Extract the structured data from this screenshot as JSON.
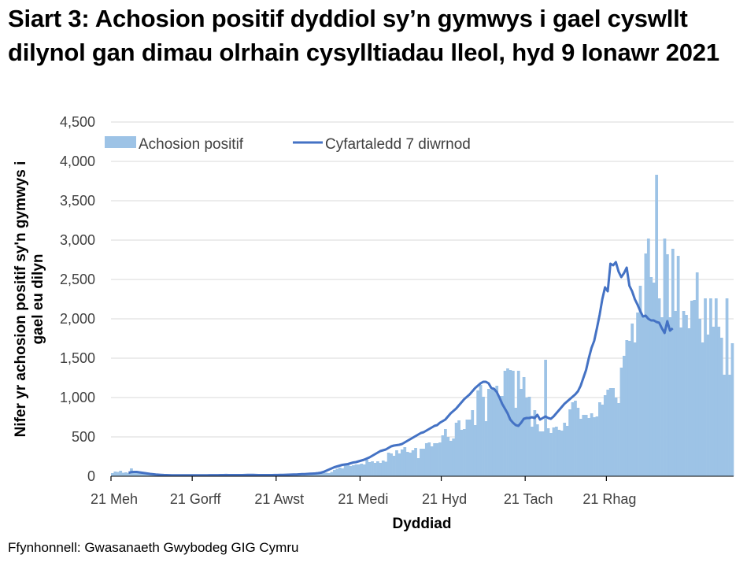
{
  "title": "Siart 3: Achosion positif dyddiol sy’n gymwys i gael cyswllt dilynol gan dimau olrhain cysylltiadau lleol, hyd 9 Ionawr 2021",
  "source": "Ffynhonnell: Gwasanaeth Gwybodeg GIG Cymru",
  "colors": {
    "bars": "#9DC3E6",
    "line": "#4472C4",
    "grid": "#D9D9D9",
    "axis": "#000000"
  },
  "chart_data": {
    "type": "bar+line",
    "title": "Siart 3: Achosion positif dyddiol sy’n gymwys i gael cyswllt dilynol gan dimau olrhain cysylltiadau lleol, hyd 9 Ionawr 2021",
    "xlabel": "Dyddiad",
    "ylabel": "Nifer yr achosion positif sy'n gymwys i gael eu dilyn",
    "ylim": [
      0,
      4500
    ],
    "yticks": [
      0,
      500,
      1000,
      1500,
      2000,
      2500,
      3000,
      3500,
      4000,
      4500
    ],
    "ytick_labels": [
      "0",
      "500",
      "1,000",
      "1,500",
      "2,000",
      "2,500",
      "3,000",
      "3,500",
      "4,000",
      "4,500"
    ],
    "xtick_labels": [
      "21 Meh",
      "21 Gorff",
      "21 Awst",
      "21 Medi",
      "21 Hyd",
      "21 Tach",
      "21 Rhag"
    ],
    "xtick_day_index": [
      0,
      30,
      61,
      92,
      122,
      153,
      183
    ],
    "start_date": "21 Meh",
    "grid": true,
    "legend_position": "top-left",
    "legend": [
      "Achosion positif",
      "Cyfartaledd 7 diwrnod"
    ],
    "series": [
      {
        "name": "Achosion positif",
        "type": "bar",
        "values": [
          40,
          60,
          55,
          70,
          45,
          50,
          40,
          100,
          55,
          45,
          40,
          35,
          30,
          30,
          25,
          20,
          20,
          15,
          20,
          15,
          12,
          10,
          15,
          12,
          10,
          12,
          10,
          10,
          15,
          10,
          10,
          12,
          10,
          15,
          10,
          12,
          25,
          10,
          12,
          10,
          15,
          10,
          12,
          10,
          20,
          15,
          30,
          10,
          12,
          10,
          15,
          10,
          12,
          10,
          10,
          15,
          12,
          10,
          10,
          12,
          15,
          20,
          25,
          20,
          20,
          15,
          25,
          15,
          20,
          25,
          20,
          30,
          30,
          25,
          30,
          40,
          35,
          40,
          50,
          45,
          40,
          55,
          80,
          95,
          110,
          100,
          140,
          150,
          130,
          140,
          150,
          150,
          160,
          150,
          210,
          180,
          190,
          170,
          190,
          170,
          200,
          185,
          300,
          290,
          260,
          330,
          290,
          340,
          370,
          310,
          300,
          330,
          360,
          230,
          350,
          350,
          420,
          430,
          380,
          420,
          420,
          430,
          520,
          600,
          500,
          450,
          480,
          680,
          710,
          590,
          600,
          720,
          720,
          840,
          650,
          1090,
          1160,
          1010,
          700,
          1110,
          1100,
          1110,
          1150,
          1020,
          1020,
          1340,
          1370,
          1350,
          1340,
          870,
          1340,
          1110,
          1260,
          1000,
          1010,
          630,
          840,
          660,
          570,
          570,
          1480,
          610,
          550,
          620,
          630,
          590,
          580,
          680,
          640,
          850,
          940,
          960,
          870,
          730,
          780,
          780,
          740,
          800,
          750,
          760,
          940,
          910,
          1030,
          1100,
          1120,
          1120,
          1000,
          930,
          1380,
          1530,
          1730,
          1720,
          1940,
          1700,
          2080,
          2420,
          2030,
          2830,
          3020,
          2530,
          2460,
          3830,
          2260,
          2020,
          3020,
          2820,
          2020,
          2890,
          2100,
          2800,
          1890,
          2100,
          2050,
          1880,
          2230,
          2240,
          2590,
          2000,
          1700,
          2260,
          1800,
          2260,
          1900,
          2260,
          1900,
          1760,
          1290,
          2260,
          1290,
          1690
        ]
      },
      {
        "name": "Cyfartaledd 7 diwrnod",
        "type": "line",
        "start_index": 6,
        "values": [
          45,
          52,
          55,
          55,
          50,
          45,
          40,
          35,
          30,
          26,
          22,
          20,
          18,
          16,
          15,
          14,
          13,
          13,
          12,
          12,
          12,
          12,
          12,
          12,
          12,
          12,
          13,
          13,
          13,
          13,
          14,
          14,
          14,
          14,
          15,
          15,
          16,
          15,
          15,
          15,
          15,
          15,
          15,
          16,
          17,
          17,
          17,
          16,
          15,
          15,
          15,
          15,
          15,
          15,
          16,
          16,
          17,
          18,
          19,
          20,
          21,
          22,
          23,
          25,
          27,
          28,
          30,
          32,
          34,
          36,
          40,
          45,
          55,
          70,
          85,
          100,
          115,
          125,
          135,
          145,
          150,
          155,
          165,
          175,
          180,
          190,
          200,
          210,
          225,
          240,
          260,
          280,
          300,
          320,
          330,
          340,
          360,
          380,
          390,
          395,
          400,
          410,
          430,
          450,
          470,
          490,
          510,
          530,
          550,
          560,
          580,
          600,
          620,
          640,
          650,
          680,
          700,
          720,
          760,
          800,
          830,
          860,
          900,
          940,
          980,
          1010,
          1040,
          1080,
          1120,
          1150,
          1180,
          1200,
          1200,
          1180,
          1120,
          1110,
          1070,
          1000,
          920,
          860,
          800,
          720,
          680,
          650,
          640,
          680,
          730,
          740,
          740,
          750,
          740,
          780,
          720,
          740,
          760,
          740,
          730,
          760,
          800,
          840,
          880,
          920,
          950,
          980,
          1010,
          1040,
          1080,
          1150,
          1250,
          1350,
          1500,
          1630,
          1720,
          1880,
          2050,
          2250,
          2400,
          2350,
          2700,
          2680,
          2720,
          2600,
          2530,
          2580,
          2650,
          2420,
          2350,
          2250,
          2180,
          2100,
          2030,
          2040,
          2000,
          1980,
          1980,
          1960,
          1950,
          1880,
          1820,
          1970,
          1850,
          1880
        ]
      }
    ]
  }
}
